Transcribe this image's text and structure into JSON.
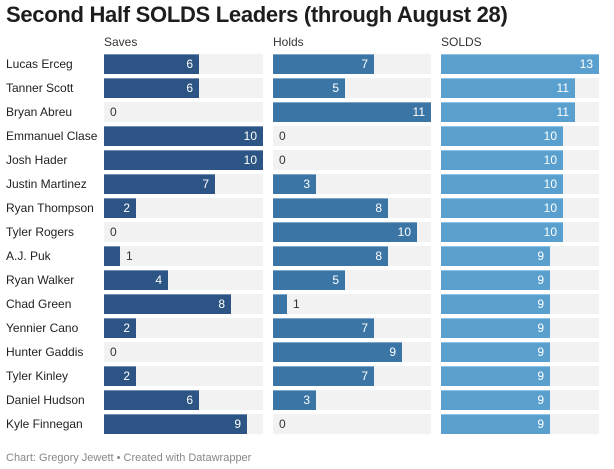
{
  "title": "Second Half SOLDS Leaders (through August 28)",
  "footer": "Chart: Gregory Jewett • Created with Datawrapper",
  "chart_data": {
    "type": "bar",
    "orientation": "horizontal",
    "title": "Second Half SOLDS Leaders (through August 28)",
    "categories": [
      "Lucas Erceg",
      "Tanner Scott",
      "Bryan Abreu",
      "Emmanuel Clase",
      "Josh Hader",
      "Justin Martinez",
      "Ryan Thompson",
      "Tyler Rogers",
      "A.J. Puk",
      "Ryan Walker",
      "Chad Green",
      "Yennier Cano",
      "Hunter Gaddis",
      "Tyler Kinley",
      "Daniel Hudson",
      "Kyle Finnegan"
    ],
    "series": [
      {
        "name": "Saves",
        "color": "#2c5484",
        "max": 10,
        "values": [
          6,
          6,
          0,
          10,
          10,
          7,
          2,
          0,
          1,
          4,
          8,
          2,
          0,
          2,
          6,
          9
        ]
      },
      {
        "name": "Holds",
        "color": "#3b75a6",
        "max": 11,
        "values": [
          7,
          5,
          11,
          0,
          0,
          3,
          8,
          10,
          8,
          5,
          1,
          7,
          9,
          7,
          3,
          0
        ]
      },
      {
        "name": "SOLDS",
        "color": "#5aa0cf",
        "max": 13,
        "values": [
          13,
          11,
          11,
          10,
          10,
          10,
          10,
          10,
          9,
          9,
          9,
          9,
          9,
          9,
          9,
          9
        ]
      }
    ],
    "background_color": "#f2f2f2",
    "grid": false,
    "legend": "column-headers"
  }
}
